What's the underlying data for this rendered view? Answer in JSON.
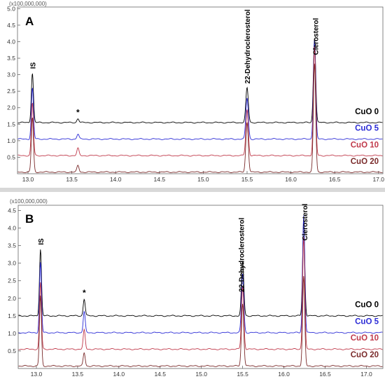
{
  "chart_data": [
    {
      "type": "line",
      "panel_label": "A",
      "y_multiplier": "(x100,000,000)",
      "x_ticks": [
        "13.0",
        "13.5",
        "14.0",
        "14.5",
        "15.0",
        "15.5",
        "16.0",
        "16.5",
        "17.0"
      ],
      "y_ticks": [
        "0.5",
        "1.0",
        "1.5",
        "2.0",
        "2.5",
        "3.0",
        "3.5",
        "4.0",
        "4.5",
        "5.0"
      ],
      "xlim": [
        12.88,
        17.05
      ],
      "ylim": [
        0.0,
        5.05
      ],
      "peak_labels": [
        {
          "text": "IS",
          "x": 13.05
        },
        {
          "text": "22-Dehydroclerosterol",
          "x": 15.5
        },
        {
          "text": "Clerosterol",
          "x": 16.28
        }
      ],
      "annotations": [
        {
          "text": "*",
          "x": 13.57
        }
      ],
      "series": [
        {
          "name": "CuO 0",
          "color": "#000000",
          "baseline": 1.55,
          "peaks": [
            {
              "x": 13.05,
              "height": 1.5
            },
            {
              "x": 13.57,
              "height": 0.12
            },
            {
              "x": 15.5,
              "height": 1.05
            },
            {
              "x": 16.27,
              "height": 2.58
            }
          ]
        },
        {
          "name": "CuO 5",
          "color": "#2b2bd6",
          "baseline": 1.05,
          "peaks": [
            {
              "x": 13.05,
              "height": 1.55
            },
            {
              "x": 13.57,
              "height": 0.15
            },
            {
              "x": 15.5,
              "height": 1.25
            },
            {
              "x": 16.27,
              "height": 3.0
            }
          ]
        },
        {
          "name": "CuO 10",
          "color": "#c0394a",
          "baseline": 0.55,
          "peaks": [
            {
              "x": 13.05,
              "height": 1.6
            },
            {
              "x": 13.57,
              "height": 0.22
            },
            {
              "x": 15.5,
              "height": 1.4
            },
            {
              "x": 16.27,
              "height": 3.3
            }
          ]
        },
        {
          "name": "CuO 20",
          "color": "#7a2a2a",
          "baseline": 0.05,
          "peaks": [
            {
              "x": 13.05,
              "height": 1.65
            },
            {
              "x": 13.57,
              "height": 0.2
            },
            {
              "x": 15.5,
              "height": 1.52
            },
            {
              "x": 16.27,
              "height": 3.3
            }
          ]
        }
      ]
    },
    {
      "type": "line",
      "panel_label": "B",
      "y_multiplier": "(x100,000,000)",
      "x_ticks": [
        "13.0",
        "13.5",
        "14.0",
        "14.5",
        "15.0",
        "15.5",
        "16.0",
        "16.5",
        "17.0"
      ],
      "y_ticks": [
        "0.5",
        "1.0",
        "1.5",
        "2.0",
        "2.5",
        "3.0",
        "3.5",
        "4.0",
        "4.5"
      ],
      "xlim": [
        12.78,
        17.2
      ],
      "ylim": [
        0.0,
        4.65
      ],
      "peak_labels": [
        {
          "text": "IS",
          "x": 13.05
        },
        {
          "text": "22-Dehydroclerosterol",
          "x": 15.48
        },
        {
          "text": "Clerosterol",
          "x": 16.25
        }
      ],
      "annotations": [
        {
          "text": "*",
          "x": 13.58
        }
      ],
      "series": [
        {
          "name": "CuO 0",
          "color": "#000000",
          "baseline": 1.5,
          "peaks": [
            {
              "x": 13.05,
              "height": 1.9
            },
            {
              "x": 13.58,
              "height": 0.48
            },
            {
              "x": 15.5,
              "height": 1.55
            },
            {
              "x": 16.24,
              "height": 2.72
            }
          ]
        },
        {
          "name": "CuO 5",
          "color": "#2b2bd6",
          "baseline": 1.02,
          "peaks": [
            {
              "x": 13.05,
              "height": 2.0
            },
            {
              "x": 13.58,
              "height": 0.6
            },
            {
              "x": 15.5,
              "height": 1.68
            },
            {
              "x": 16.24,
              "height": 3.35
            }
          ]
        },
        {
          "name": "CuO 10",
          "color": "#c0394a",
          "baseline": 0.55,
          "peaks": [
            {
              "x": 13.05,
              "height": 1.9
            },
            {
              "x": 13.58,
              "height": 0.55
            },
            {
              "x": 15.5,
              "height": 1.8
            },
            {
              "x": 16.24,
              "height": 3.2
            }
          ]
        },
        {
          "name": "CuO 20",
          "color": "#7a2a2a",
          "baseline": 0.07,
          "peaks": [
            {
              "x": 13.05,
              "height": 2.0
            },
            {
              "x": 13.58,
              "height": 0.38
            },
            {
              "x": 15.5,
              "height": 1.78
            },
            {
              "x": 16.24,
              "height": 2.55
            }
          ]
        }
      ]
    }
  ]
}
